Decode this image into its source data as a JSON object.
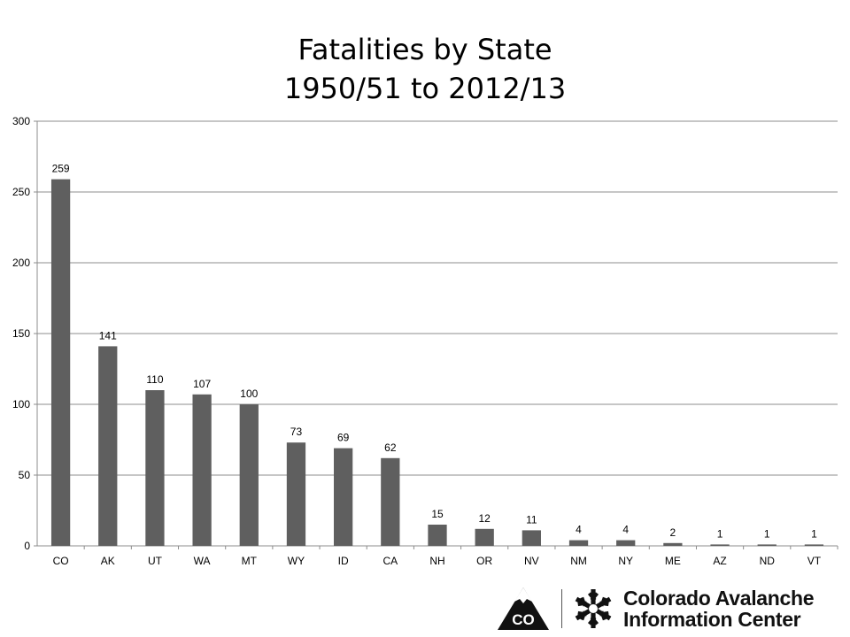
{
  "chart_data": {
    "type": "bar",
    "title_line1": "Fatalities by State",
    "title_line2": "1950/51 to 2012/13",
    "categories": [
      "CO",
      "AK",
      "UT",
      "WA",
      "MT",
      "WY",
      "ID",
      "CA",
      "NH",
      "OR",
      "NV",
      "NM",
      "NY",
      "ME",
      "AZ",
      "ND",
      "VT"
    ],
    "values": [
      259,
      141,
      110,
      107,
      100,
      73,
      69,
      62,
      15,
      12,
      11,
      4,
      4,
      2,
      1,
      1,
      1
    ],
    "ylim": [
      0,
      300
    ],
    "yticks": [
      0,
      50,
      100,
      150,
      200,
      250,
      300
    ],
    "grid": true,
    "legend": "none",
    "bar_color": "#5f5f5f",
    "data_labels": true
  },
  "logo": {
    "badge_text": "CO",
    "line1": "Colorado Avalanche",
    "line2": "Information Center"
  }
}
